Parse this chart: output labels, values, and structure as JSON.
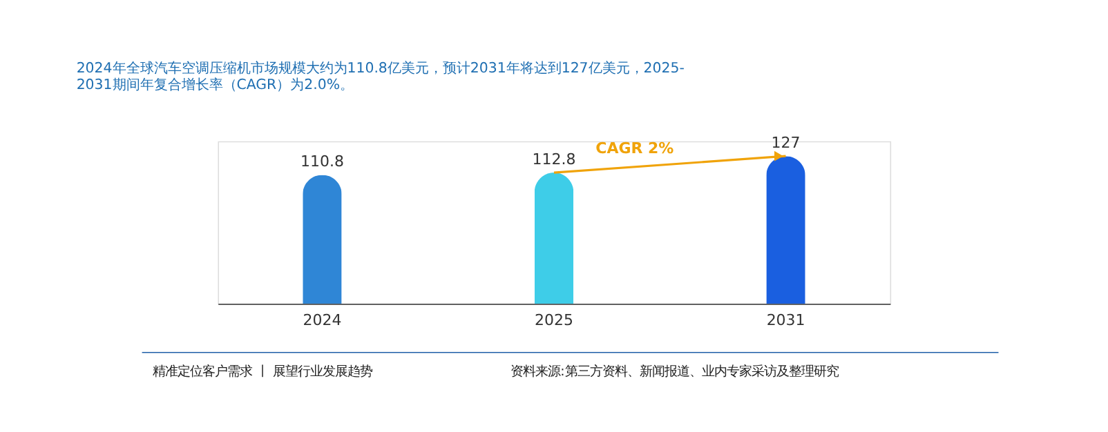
{
  "chart_data": {
    "type": "bar",
    "title": [
      "2024年全球汽车空调压缩机市场规模大约为110.8亿美元，预计2031年将达到127亿美元，2025-",
      "2031期间年复合增长率（CAGR）为2.0%。"
    ],
    "categories": [
      "2024",
      "2025",
      "2031"
    ],
    "values": [
      110.8,
      112.8,
      127
    ],
    "colors": [
      "#2f86d6",
      "#3ecde8",
      "#1a5fe0"
    ],
    "data_labels": true,
    "annotations": [
      "CAGR 2%",
      "精准定位客户需求 丨 展望行业发展趋势",
      "资料来源:第三方资料、新闻报道、业内专家采访及整理研究"
    ]
  }
}
